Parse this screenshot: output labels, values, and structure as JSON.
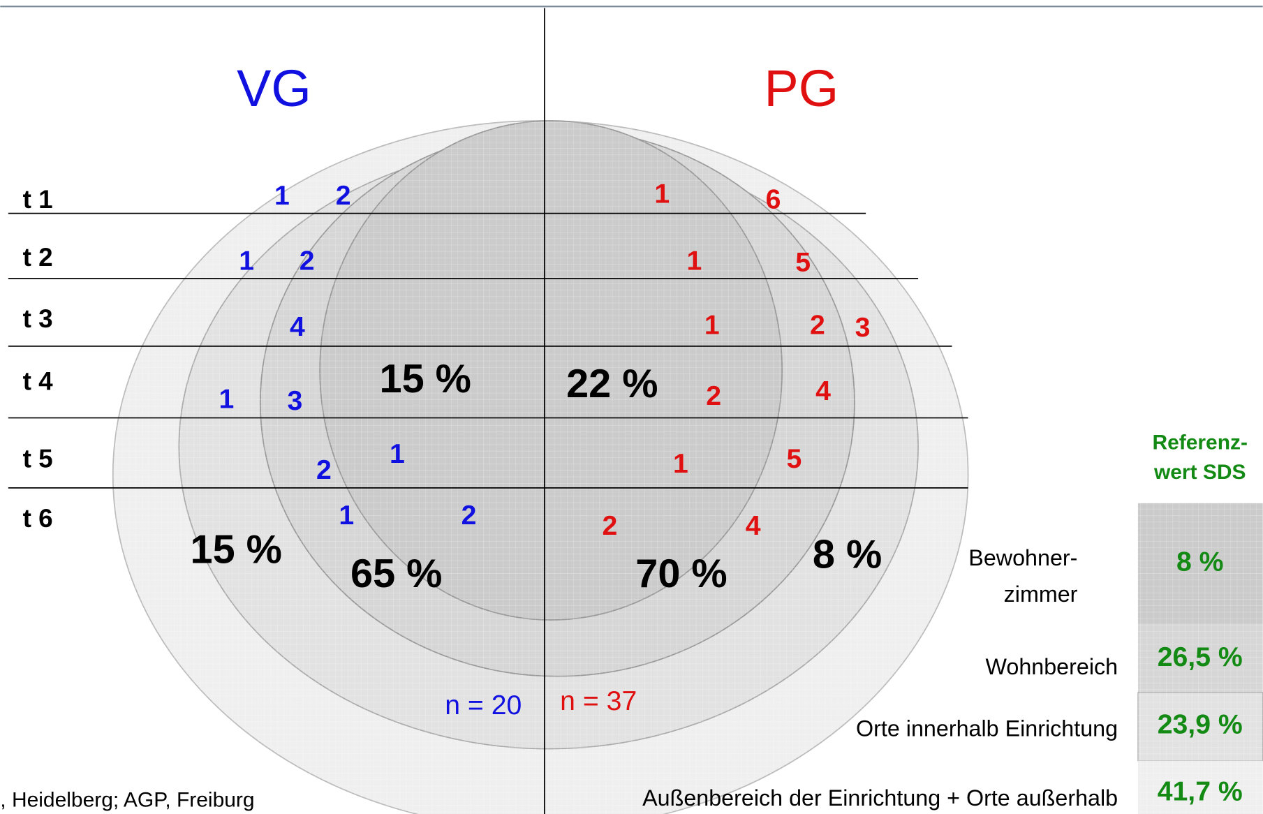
{
  "groups": [
    {
      "label": "VG",
      "n": "n = 20"
    },
    {
      "label": "PG",
      "n": "n = 37"
    }
  ],
  "rows": [
    {
      "label": "t 1",
      "vg": [
        "1",
        "2"
      ],
      "pg": [
        "1",
        "6"
      ]
    },
    {
      "label": "t 2",
      "vg": [
        "1",
        "2"
      ],
      "pg": [
        "1",
        "5"
      ]
    },
    {
      "label": "t 3",
      "vg": [
        "4"
      ],
      "pg": [
        "1",
        "2",
        "3"
      ]
    },
    {
      "label": "t 4",
      "vg": [
        "1",
        "3"
      ],
      "pg": [
        "2",
        "4"
      ]
    },
    {
      "label": "t 5",
      "vg": [
        "2",
        "1"
      ],
      "pg": [
        "1",
        "5"
      ]
    },
    {
      "label": "t 6",
      "vg": [
        "1",
        "2"
      ],
      "pg": [
        "2",
        "4"
      ]
    }
  ],
  "percentages": [
    "15 %",
    "22 %",
    "15 %",
    "65 %",
    "70 %",
    "8 %"
  ],
  "reference": {
    "title": [
      "Referenz-",
      "wert SDS"
    ],
    "items": [
      {
        "label": [
          "Bewohner-",
          "zimmer"
        ],
        "value": "8 %"
      },
      {
        "label": [
          "Wohnbereich"
        ],
        "value": "26,5 %"
      },
      {
        "label": [
          "Orte innerhalb Einrichtung"
        ],
        "value": "23,9 %"
      },
      {
        "label": [
          "Außenbereich der Einrichtung + Orte außerhalb"
        ],
        "value": "41,7 %"
      }
    ]
  },
  "footer": ", Heidelberg; AGP, Freiburg"
}
